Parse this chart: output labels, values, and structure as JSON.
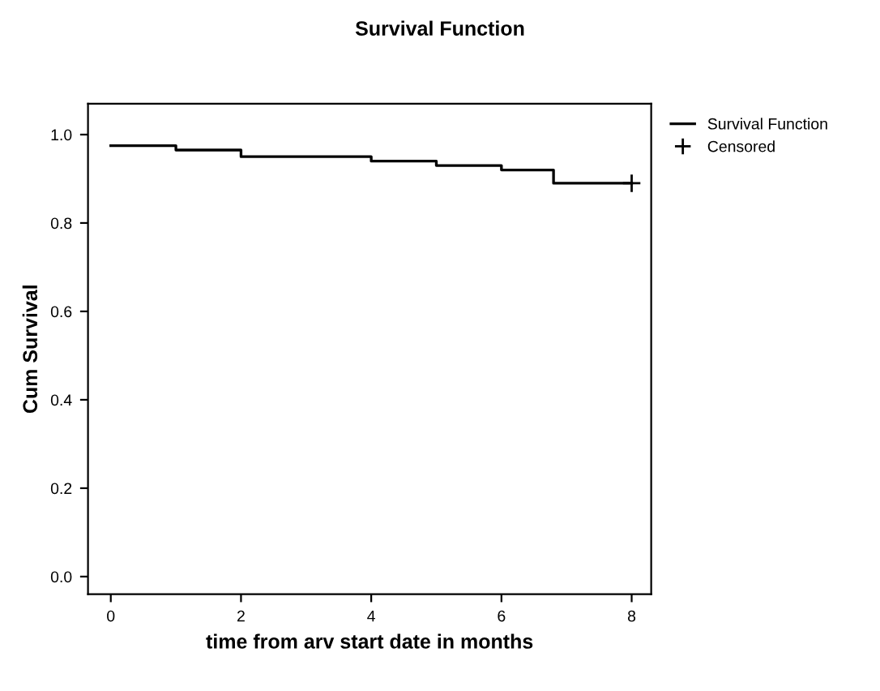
{
  "chart_data": {
    "type": "step",
    "title": "Survival Function",
    "xlabel": "time from arv start date in months",
    "ylabel": "Cum Survival",
    "series": [
      {
        "name": "Survival Function",
        "color": "#000000",
        "x": [
          0,
          1,
          2,
          4,
          5,
          6,
          6.8,
          8
        ],
        "values": [
          0.975,
          0.965,
          0.95,
          0.94,
          0.93,
          0.92,
          0.89,
          0.89
        ]
      },
      {
        "name": "Censored",
        "type": "scatter",
        "color": "#000000",
        "marker": "cross",
        "x": [
          8
        ],
        "values": [
          0.89
        ]
      }
    ],
    "xlim": [
      -0.35,
      8.3
    ],
    "ylim": [
      -0.04,
      1.07
    ],
    "xticks": [
      0,
      2,
      4,
      6,
      8
    ],
    "yticks": [
      {
        "value": 0,
        "label": "0.0"
      },
      0.2,
      0.4,
      0.6,
      0.8,
      {
        "value": 1,
        "label": "1.0"
      }
    ],
    "grid": false,
    "legend": "top right"
  }
}
